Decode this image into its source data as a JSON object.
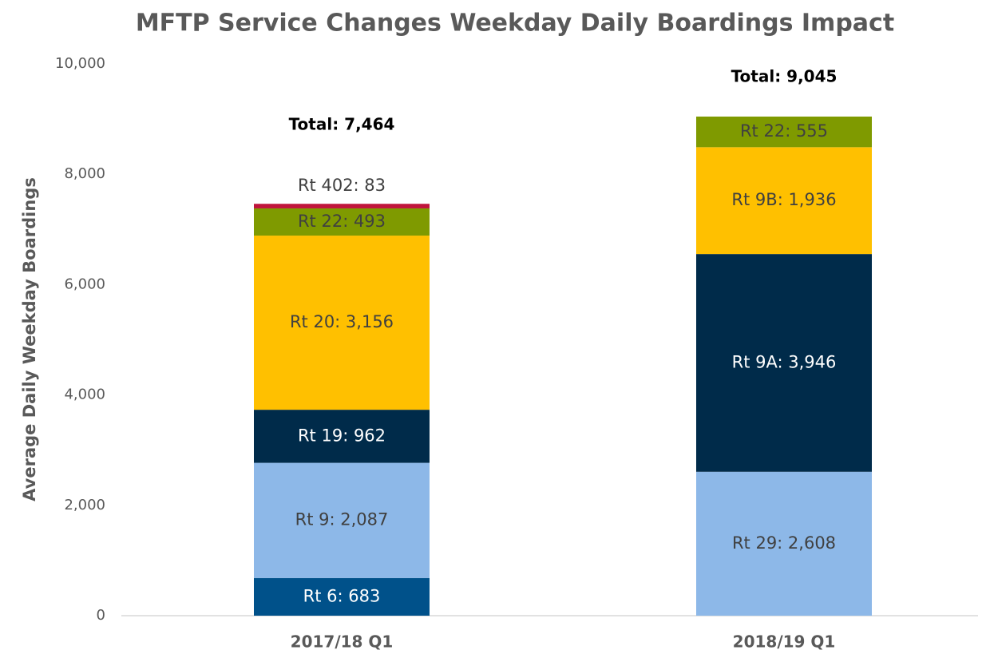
{
  "chart_data": {
    "type": "bar",
    "stacked": true,
    "title": "MFTP Service Changes Weekday Daily Boardings Impact",
    "y_label": "Average Daily Weekday Boardings",
    "categories": [
      "2017/18 Q1",
      "2018/19 Q1"
    ],
    "series": [
      {
        "color": "#00518a",
        "label_color": "#ffffff",
        "values": [
          683,
          null
        ],
        "value_labels": [
          "Rt 6: 683",
          null
        ]
      },
      {
        "color": "#8db8e8",
        "label_color": "#404040",
        "values": [
          2087,
          null
        ],
        "value_labels": [
          "Rt 9: 2,087",
          null
        ]
      },
      {
        "color": "#8db8e8",
        "label_color": "#404040",
        "values": [
          null,
          2608
        ],
        "value_labels": [
          null,
          "Rt 29: 2,608"
        ]
      },
      {
        "color": "#002b4a",
        "label_color": "#ffffff",
        "values": [
          962,
          null
        ],
        "value_labels": [
          "Rt 19: 962",
          null
        ]
      },
      {
        "color": "#002b4a",
        "label_color": "#ffffff",
        "values": [
          null,
          3946
        ],
        "value_labels": [
          null,
          "Rt 9A: 3,946"
        ]
      },
      {
        "color": "#ffc000",
        "label_color": "#404040",
        "values": [
          3156,
          null
        ],
        "value_labels": [
          "Rt 20: 3,156",
          null
        ]
      },
      {
        "color": "#ffc000",
        "label_color": "#404040",
        "values": [
          null,
          1936
        ],
        "value_labels": [
          null,
          "Rt 9B: 1,936"
        ]
      },
      {
        "color": "#7f9a00",
        "label_color": "#404040",
        "values": [
          493,
          555
        ],
        "value_labels": [
          "Rt 22: 493",
          "Rt 22: 555"
        ]
      },
      {
        "color": "#c0143c",
        "label_color": "#404040",
        "values": [
          83,
          null
        ],
        "value_labels": [
          "Rt 402: 83",
          null
        ]
      }
    ],
    "totals": [
      7464,
      9045
    ],
    "total_labels": [
      "Total: 7,464",
      "Total: 9,045"
    ],
    "ylim": [
      0,
      10000
    ],
    "yticks": [
      0,
      {
        "value": 2000,
        "label": "2,000"
      },
      {
        "value": 4000,
        "label": "4,000"
      },
      {
        "value": 6000,
        "label": "6,000"
      },
      {
        "value": 8000,
        "label": "8,000"
      },
      {
        "value": 10000,
        "label": "10,000"
      }
    ],
    "grid": false
  }
}
